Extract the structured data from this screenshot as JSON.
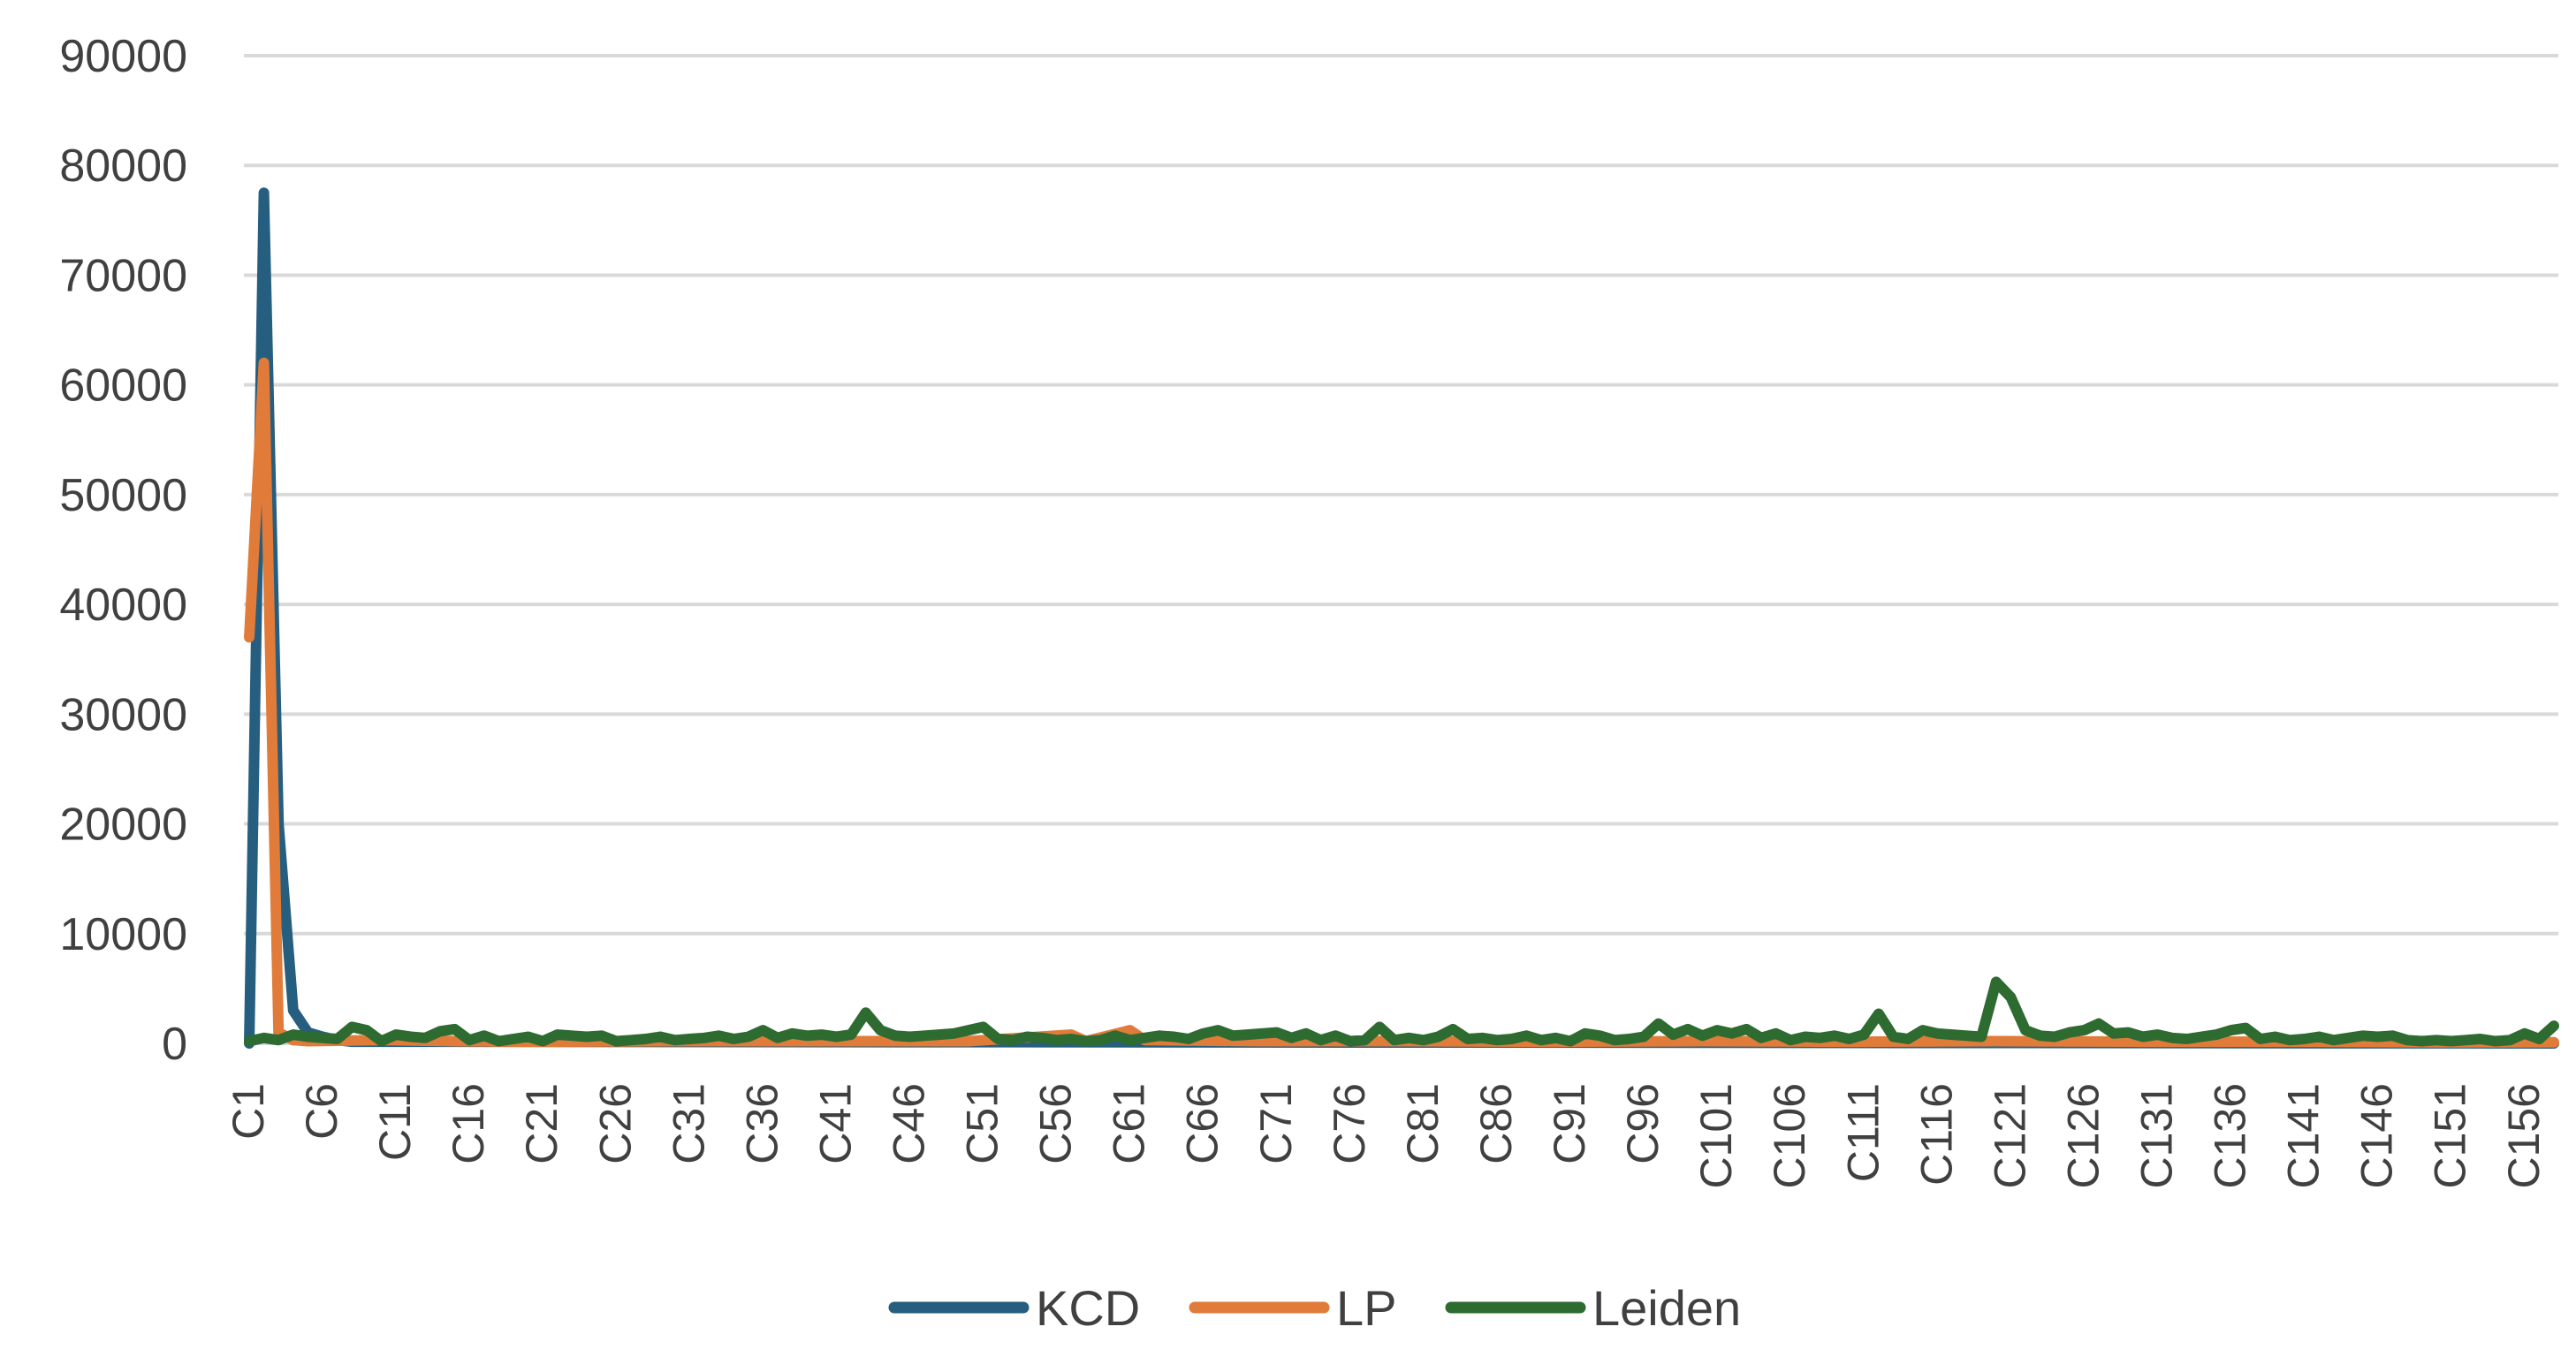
{
  "chart_data": {
    "type": "line",
    "ylim": [
      0,
      90000
    ],
    "yticks": [
      "0",
      "10000",
      "20000",
      "30000",
      "40000",
      "50000",
      "60000",
      "70000",
      "80000",
      "90000"
    ],
    "x_count": 158,
    "x_tick_labels": [
      "C1",
      "C6",
      "C11",
      "C16",
      "C21",
      "C26",
      "C31",
      "C36",
      "C41",
      "C46",
      "C51",
      "C56",
      "C61",
      "C66",
      "C71",
      "C76",
      "C81",
      "C86",
      "C91",
      "C96",
      "C101",
      "C106",
      "C111",
      "C116",
      "C121",
      "C126",
      "C131",
      "C136",
      "C141",
      "C146",
      "C151",
      "C156"
    ],
    "x_tick_indices": [
      1,
      6,
      11,
      16,
      21,
      26,
      31,
      36,
      41,
      46,
      51,
      56,
      61,
      66,
      71,
      76,
      81,
      86,
      91,
      96,
      101,
      106,
      111,
      116,
      121,
      126,
      131,
      136,
      141,
      146,
      151,
      156
    ],
    "legend_position": "bottom",
    "grid": true,
    "series": [
      {
        "name": "KCD",
        "color": "#255e7e",
        "points": [
          [
            1,
            0
          ],
          [
            2,
            77500
          ],
          [
            3,
            20000
          ],
          [
            4,
            3000
          ],
          [
            5,
            1000
          ],
          [
            6,
            600
          ],
          [
            7,
            300
          ],
          [
            8,
            150
          ],
          [
            158,
            0
          ]
        ]
      },
      {
        "name": "LP",
        "color": "#e07b39",
        "points": [
          [
            1,
            37000
          ],
          [
            2,
            62000
          ],
          [
            3,
            1000
          ],
          [
            4,
            300
          ],
          [
            5,
            200
          ],
          [
            10,
            300
          ],
          [
            15,
            200
          ],
          [
            20,
            150
          ],
          [
            30,
            200
          ],
          [
            40,
            200
          ],
          [
            50,
            200
          ],
          [
            57,
            800
          ],
          [
            58,
            200
          ],
          [
            61,
            1200
          ],
          [
            62,
            300
          ],
          [
            70,
            200
          ],
          [
            80,
            200
          ],
          [
            90,
            150
          ],
          [
            100,
            200
          ],
          [
            110,
            150
          ],
          [
            120,
            200
          ],
          [
            130,
            150
          ],
          [
            140,
            150
          ],
          [
            150,
            100
          ],
          [
            158,
            100
          ]
        ]
      },
      {
        "name": "Leiden",
        "color": "#2e6b30",
        "points": [
          [
            1,
            200
          ],
          [
            2,
            500
          ],
          [
            3,
            300
          ],
          [
            4,
            800
          ],
          [
            5,
            600
          ],
          [
            6,
            500
          ],
          [
            7,
            400
          ],
          [
            8,
            1500
          ],
          [
            9,
            1200
          ],
          [
            10,
            200
          ],
          [
            11,
            800
          ],
          [
            12,
            600
          ],
          [
            13,
            500
          ],
          [
            14,
            1100
          ],
          [
            15,
            1300
          ],
          [
            16,
            300
          ],
          [
            17,
            700
          ],
          [
            18,
            200
          ],
          [
            19,
            400
          ],
          [
            20,
            600
          ],
          [
            21,
            200
          ],
          [
            22,
            800
          ],
          [
            23,
            700
          ],
          [
            24,
            600
          ],
          [
            25,
            700
          ],
          [
            26,
            200
          ],
          [
            27,
            300
          ],
          [
            28,
            400
          ],
          [
            29,
            600
          ],
          [
            30,
            300
          ],
          [
            31,
            400
          ],
          [
            32,
            500
          ],
          [
            33,
            700
          ],
          [
            34,
            400
          ],
          [
            35,
            600
          ],
          [
            36,
            1200
          ],
          [
            37,
            500
          ],
          [
            38,
            900
          ],
          [
            39,
            700
          ],
          [
            40,
            800
          ],
          [
            41,
            600
          ],
          [
            42,
            800
          ],
          [
            43,
            2800
          ],
          [
            44,
            1200
          ],
          [
            45,
            700
          ],
          [
            46,
            600
          ],
          [
            47,
            700
          ],
          [
            48,
            800
          ],
          [
            49,
            900
          ],
          [
            50,
            1200
          ],
          [
            51,
            1500
          ],
          [
            52,
            400
          ],
          [
            53,
            300
          ],
          [
            54,
            600
          ],
          [
            55,
            500
          ],
          [
            56,
            300
          ],
          [
            57,
            400
          ],
          [
            58,
            200
          ],
          [
            59,
            300
          ],
          [
            60,
            700
          ],
          [
            61,
            300
          ],
          [
            62,
            500
          ],
          [
            63,
            700
          ],
          [
            64,
            600
          ],
          [
            65,
            400
          ],
          [
            66,
            900
          ],
          [
            67,
            1200
          ],
          [
            68,
            700
          ],
          [
            69,
            800
          ],
          [
            70,
            900
          ],
          [
            71,
            1000
          ],
          [
            72,
            500
          ],
          [
            73,
            900
          ],
          [
            74,
            300
          ],
          [
            75,
            700
          ],
          [
            76,
            200
          ],
          [
            77,
            300
          ],
          [
            78,
            1500
          ],
          [
            79,
            300
          ],
          [
            80,
            500
          ],
          [
            81,
            300
          ],
          [
            82,
            600
          ],
          [
            83,
            1300
          ],
          [
            84,
            400
          ],
          [
            85,
            500
          ],
          [
            86,
            300
          ],
          [
            87,
            400
          ],
          [
            88,
            700
          ],
          [
            89,
            300
          ],
          [
            90,
            500
          ],
          [
            91,
            200
          ],
          [
            92,
            900
          ],
          [
            93,
            700
          ],
          [
            94,
            300
          ],
          [
            95,
            400
          ],
          [
            96,
            600
          ],
          [
            97,
            1800
          ],
          [
            98,
            800
          ],
          [
            99,
            1300
          ],
          [
            100,
            700
          ],
          [
            101,
            1200
          ],
          [
            102,
            900
          ],
          [
            103,
            1300
          ],
          [
            104,
            500
          ],
          [
            105,
            900
          ],
          [
            106,
            300
          ],
          [
            107,
            600
          ],
          [
            108,
            500
          ],
          [
            109,
            700
          ],
          [
            110,
            400
          ],
          [
            111,
            800
          ],
          [
            112,
            2700
          ],
          [
            113,
            600
          ],
          [
            114,
            400
          ],
          [
            115,
            1200
          ],
          [
            116,
            900
          ],
          [
            117,
            800
          ],
          [
            118,
            700
          ],
          [
            119,
            600
          ],
          [
            120,
            5600
          ],
          [
            121,
            4200
          ],
          [
            122,
            1200
          ],
          [
            123,
            700
          ],
          [
            124,
            600
          ],
          [
            125,
            1000
          ],
          [
            126,
            1200
          ],
          [
            127,
            1800
          ],
          [
            128,
            900
          ],
          [
            129,
            1000
          ],
          [
            130,
            600
          ],
          [
            131,
            800
          ],
          [
            132,
            500
          ],
          [
            133,
            400
          ],
          [
            134,
            600
          ],
          [
            135,
            800
          ],
          [
            136,
            1200
          ],
          [
            137,
            1400
          ],
          [
            138,
            400
          ],
          [
            139,
            600
          ],
          [
            140,
            300
          ],
          [
            141,
            400
          ],
          [
            142,
            600
          ],
          [
            143,
            300
          ],
          [
            144,
            500
          ],
          [
            145,
            700
          ],
          [
            146,
            600
          ],
          [
            147,
            700
          ],
          [
            148,
            300
          ],
          [
            149,
            200
          ],
          [
            150,
            300
          ],
          [
            151,
            200
          ],
          [
            152,
            300
          ],
          [
            153,
            400
          ],
          [
            154,
            200
          ],
          [
            155,
            300
          ],
          [
            156,
            900
          ],
          [
            157,
            400
          ],
          [
            158,
            1600
          ]
        ]
      }
    ]
  }
}
